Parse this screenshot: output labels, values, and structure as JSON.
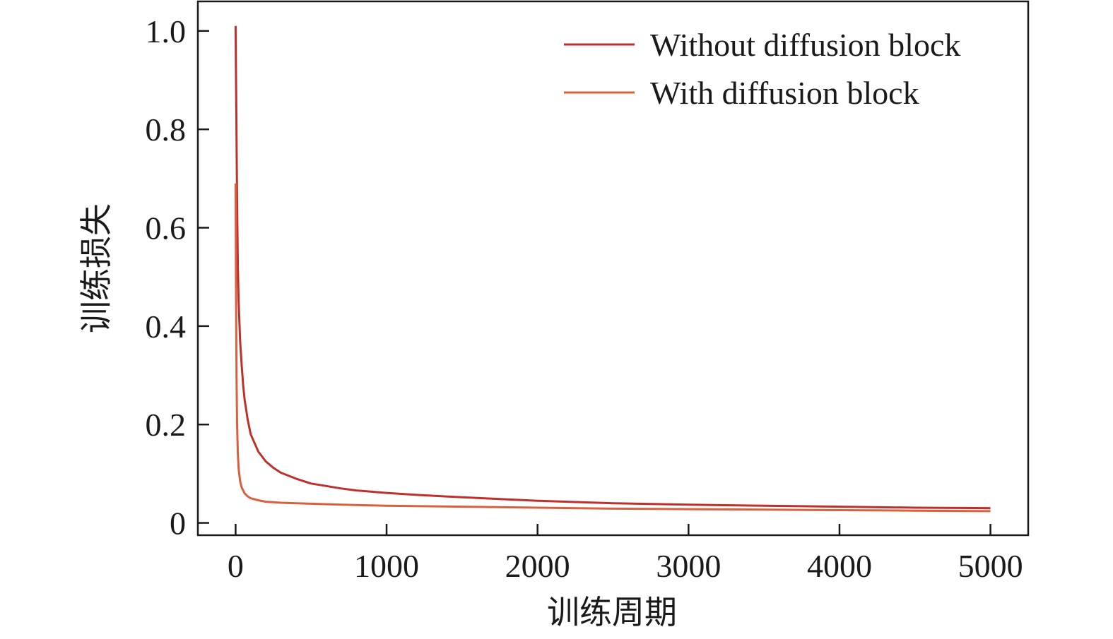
{
  "chart_data": {
    "type": "line",
    "title": "",
    "xlabel": "训练周期",
    "ylabel": "训练损失",
    "xlim": [
      -250,
      5250
    ],
    "ylim": [
      -0.025,
      1.06
    ],
    "xticks": [
      0,
      1000,
      2000,
      3000,
      4000,
      5000
    ],
    "xtick_labels": [
      "0",
      "1000",
      "2000",
      "3000",
      "4000",
      "5000"
    ],
    "yticks": [
      0,
      0.2,
      0.4,
      0.6,
      0.8,
      1.0
    ],
    "ytick_labels": [
      "0",
      "0.2",
      "0.4",
      "0.6",
      "0.8",
      "1.0"
    ],
    "grid": false,
    "legend_position": "top-right",
    "series": [
      {
        "name": "Without diffusion block",
        "color": "#c0302a",
        "x": [
          0,
          5,
          10,
          15,
          20,
          30,
          40,
          50,
          60,
          80,
          100,
          150,
          200,
          250,
          300,
          400,
          500,
          600,
          700,
          800,
          1000,
          1200,
          1500,
          2000,
          2500,
          3000,
          3500,
          4000,
          4500,
          5000
        ],
        "y": [
          1.01,
          0.82,
          0.65,
          0.52,
          0.45,
          0.37,
          0.32,
          0.28,
          0.25,
          0.21,
          0.18,
          0.145,
          0.125,
          0.112,
          0.102,
          0.09,
          0.08,
          0.075,
          0.07,
          0.066,
          0.061,
          0.057,
          0.052,
          0.045,
          0.04,
          0.037,
          0.035,
          0.033,
          0.031,
          0.03
        ]
      },
      {
        "name": "With diffusion block",
        "color": "#d9603e",
        "x": [
          0,
          3,
          6,
          10,
          15,
          20,
          30,
          40,
          60,
          80,
          100,
          150,
          200,
          300,
          400,
          500,
          700,
          1000,
          1500,
          2000,
          2500,
          3000,
          3500,
          4000,
          4500,
          5000
        ],
        "y": [
          0.69,
          0.45,
          0.3,
          0.2,
          0.14,
          0.11,
          0.085,
          0.072,
          0.06,
          0.054,
          0.05,
          0.046,
          0.043,
          0.041,
          0.04,
          0.039,
          0.037,
          0.035,
          0.033,
          0.031,
          0.029,
          0.028,
          0.027,
          0.026,
          0.025,
          0.024
        ]
      }
    ]
  }
}
